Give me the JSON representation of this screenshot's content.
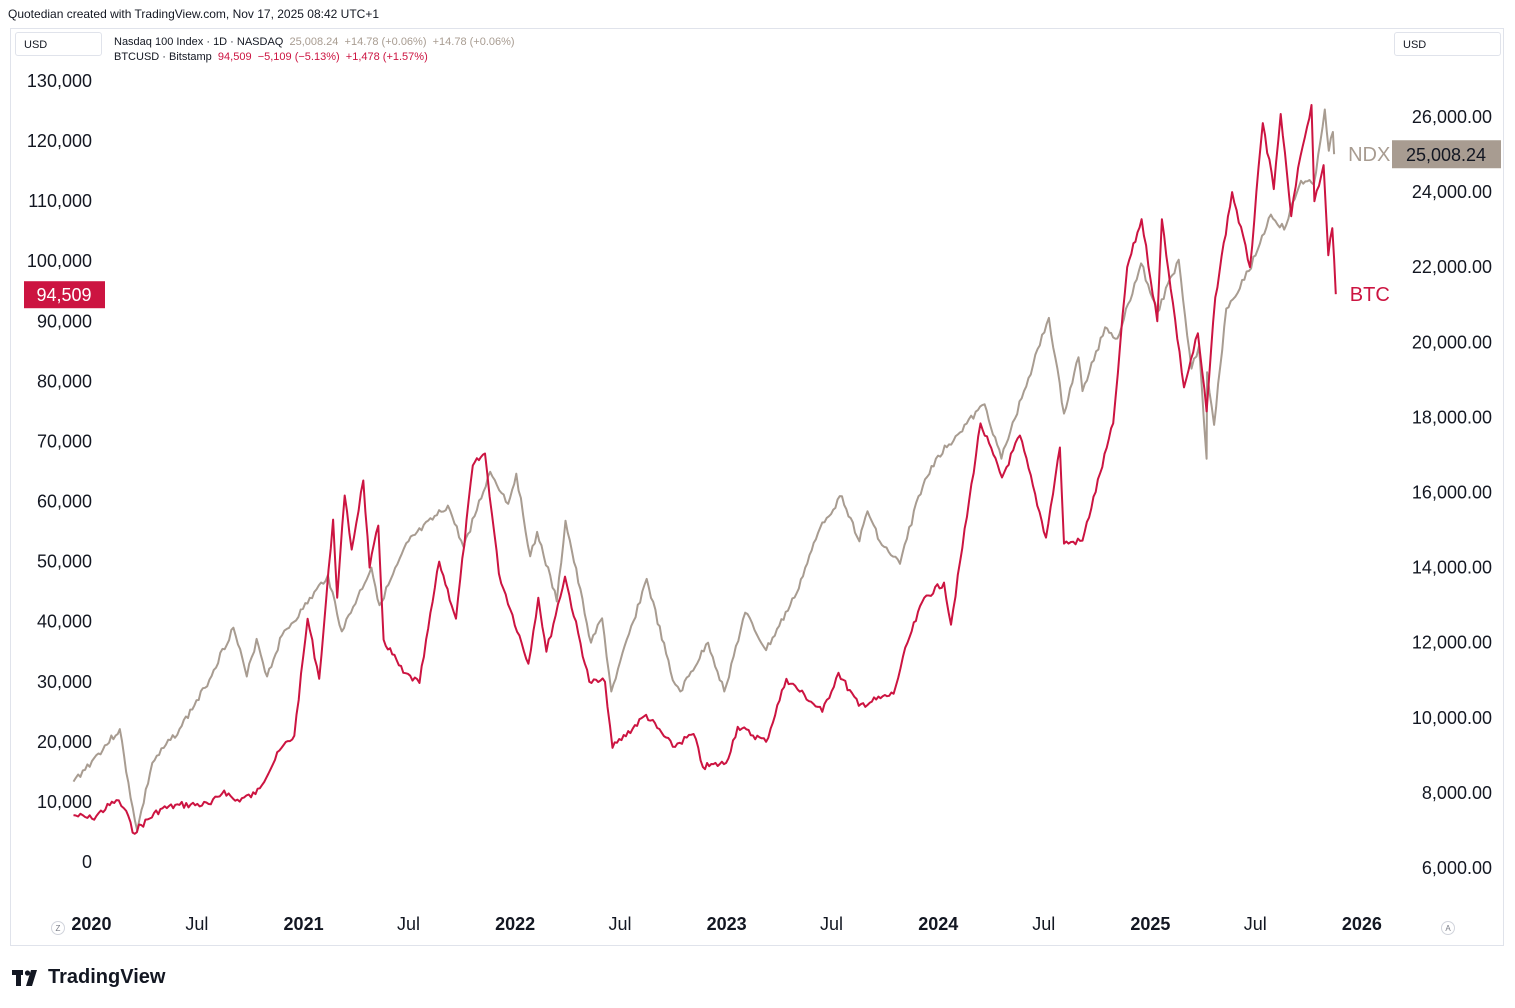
{
  "credit": "Quotedian created with TradingView.com, Nov 17, 2025 08:42 UTC+1",
  "units": {
    "left": "USD",
    "right": "USD"
  },
  "legend": {
    "ndx": {
      "name": "Nasdaq 100 Index · 1D · NASDAQ",
      "price": "25,008.24",
      "change": "+14.78 (+0.06%)",
      "change2": "+14.78 (+0.06%)"
    },
    "btc": {
      "name": "BTCUSD · Bitstamp",
      "price": "94,509",
      "change": "−5,109 (−5.13%)",
      "change2": "+1,478 (+1.57%)"
    }
  },
  "colors": {
    "ndx": "#a89c91",
    "btc": "#cc1441",
    "grid": "#f0f3fa",
    "text": "#131722"
  },
  "corner": {
    "left": "Z",
    "right": "A"
  },
  "brand": "TradingView",
  "chart_data": {
    "type": "line",
    "xlim": [
      "2019-11-25",
      "2026-01-15"
    ],
    "x_ticks": [
      {
        "date": "2020-01-01",
        "label": "2020",
        "bold": true
      },
      {
        "date": "2020-07-01",
        "label": "Jul",
        "bold": false
      },
      {
        "date": "2021-01-01",
        "label": "2021",
        "bold": true
      },
      {
        "date": "2021-07-01",
        "label": "Jul",
        "bold": false
      },
      {
        "date": "2022-01-01",
        "label": "2022",
        "bold": true
      },
      {
        "date": "2022-07-01",
        "label": "Jul",
        "bold": false
      },
      {
        "date": "2023-01-01",
        "label": "2023",
        "bold": true
      },
      {
        "date": "2023-07-01",
        "label": "Jul",
        "bold": false
      },
      {
        "date": "2024-01-01",
        "label": "2024",
        "bold": true
      },
      {
        "date": "2024-07-01",
        "label": "Jul",
        "bold": false
      },
      {
        "date": "2025-01-01",
        "label": "2025",
        "bold": true
      },
      {
        "date": "2025-07-01",
        "label": "Jul",
        "bold": false
      },
      {
        "date": "2026-01-01",
        "label": "2026",
        "bold": true
      }
    ],
    "left_axis": {
      "range": [
        0,
        130000
      ],
      "ticks": [
        {
          "value": 0,
          "label": "0"
        },
        {
          "value": 10000,
          "label": "10,000"
        },
        {
          "value": 20000,
          "label": "20,000"
        },
        {
          "value": 30000,
          "label": "30,000"
        },
        {
          "value": 40000,
          "label": "40,000"
        },
        {
          "value": 50000,
          "label": "50,000"
        },
        {
          "value": 60000,
          "label": "60,000"
        },
        {
          "value": 70000,
          "label": "70,000"
        },
        {
          "value": 80000,
          "label": "80,000"
        },
        {
          "value": 90000,
          "label": "90,000"
        },
        {
          "value": 100000,
          "label": "100,000"
        },
        {
          "value": 110000,
          "label": "110,000"
        },
        {
          "value": 120000,
          "label": "120,000"
        },
        {
          "value": 130000,
          "label": "130,000"
        }
      ]
    },
    "right_axis": {
      "range": [
        6000,
        26000
      ],
      "ticks": [
        {
          "value": 6000,
          "label": "6,000.00"
        },
        {
          "value": 8000,
          "label": "8,000.00"
        },
        {
          "value": 10000,
          "label": "10,000.00"
        },
        {
          "value": 12000,
          "label": "12,000.00"
        },
        {
          "value": 14000,
          "label": "14,000.00"
        },
        {
          "value": 16000,
          "label": "16,000.00"
        },
        {
          "value": 18000,
          "label": "18,000.00"
        },
        {
          "value": 20000,
          "label": "20,000.00"
        },
        {
          "value": 22000,
          "label": "22,000.00"
        },
        {
          "value": 24000,
          "label": "24,000.00"
        },
        {
          "value": 26000,
          "label": "26,000.00"
        }
      ]
    },
    "series": [
      {
        "name": "NDX",
        "axis": "right",
        "last_label": "25,008.24",
        "points": [
          [
            "2019-12-01",
            8300
          ],
          [
            "2020-01-02",
            8850
          ],
          [
            "2020-02-19",
            9700
          ],
          [
            "2020-03-01",
            8550
          ],
          [
            "2020-03-20",
            7000
          ],
          [
            "2020-04-15",
            8800
          ],
          [
            "2020-06-01",
            9700
          ],
          [
            "2020-07-15",
            10800
          ],
          [
            "2020-09-02",
            12400
          ],
          [
            "2020-09-25",
            11100
          ],
          [
            "2020-10-12",
            12100
          ],
          [
            "2020-10-30",
            11100
          ],
          [
            "2020-11-25",
            12200
          ],
          [
            "2020-12-31",
            12900
          ],
          [
            "2021-02-12",
            13800
          ],
          [
            "2021-03-08",
            12300
          ],
          [
            "2021-04-28",
            14000
          ],
          [
            "2021-05-12",
            13000
          ],
          [
            "2021-07-01",
            14700
          ],
          [
            "2021-09-07",
            15650
          ],
          [
            "2021-10-04",
            14550
          ],
          [
            "2021-11-19",
            16550
          ],
          [
            "2021-12-20",
            15700
          ],
          [
            "2022-01-03",
            16500
          ],
          [
            "2022-01-27",
            14300
          ],
          [
            "2022-02-08",
            14950
          ],
          [
            "2022-03-14",
            13100
          ],
          [
            "2022-03-29",
            15250
          ],
          [
            "2022-05-12",
            12000
          ],
          [
            "2022-05-31",
            12650
          ],
          [
            "2022-06-16",
            10700
          ],
          [
            "2022-08-16",
            13700
          ],
          [
            "2022-09-30",
            11000
          ],
          [
            "2022-10-13",
            10700
          ],
          [
            "2022-11-30",
            12000
          ],
          [
            "2022-12-28",
            10700
          ],
          [
            "2023-02-02",
            12800
          ],
          [
            "2023-03-10",
            11800
          ],
          [
            "2023-04-28",
            13200
          ],
          [
            "2023-06-15",
            15200
          ],
          [
            "2023-07-19",
            15900
          ],
          [
            "2023-08-18",
            14700
          ],
          [
            "2023-09-01",
            15500
          ],
          [
            "2023-09-26",
            14600
          ],
          [
            "2023-10-27",
            14100
          ],
          [
            "2023-11-28",
            15900
          ],
          [
            "2023-12-28",
            16900
          ],
          [
            "2024-01-31",
            17500
          ],
          [
            "2024-03-21",
            18350
          ],
          [
            "2024-04-19",
            16900
          ],
          [
            "2024-05-28",
            18700
          ],
          [
            "2024-07-10",
            20650
          ],
          [
            "2024-08-05",
            18100
          ],
          [
            "2024-08-30",
            19600
          ],
          [
            "2024-09-06",
            18700
          ],
          [
            "2024-10-15",
            20400
          ],
          [
            "2024-11-05",
            20100
          ],
          [
            "2024-12-16",
            22100
          ],
          [
            "2025-01-13",
            20800
          ],
          [
            "2025-02-19",
            22200
          ],
          [
            "2025-03-13",
            19300
          ],
          [
            "2025-03-26",
            19900
          ],
          [
            "2025-04-08",
            16900
          ],
          [
            "2025-04-09",
            19200
          ],
          [
            "2025-04-21",
            17800
          ],
          [
            "2025-05-12",
            20900
          ],
          [
            "2025-06-20",
            21900
          ],
          [
            "2025-07-28",
            23400
          ],
          [
            "2025-08-20",
            23000
          ],
          [
            "2025-09-18",
            24300
          ],
          [
            "2025-10-10",
            24200
          ],
          [
            "2025-10-29",
            26200
          ],
          [
            "2025-11-05",
            25100
          ],
          [
            "2025-11-12",
            25600
          ],
          [
            "2025-11-14",
            25008.24
          ]
        ]
      },
      {
        "name": "BTC",
        "axis": "left",
        "last_label": "94,509",
        "points": [
          [
            "2019-12-01",
            7800
          ],
          [
            "2020-01-02",
            7200
          ],
          [
            "2020-02-13",
            10300
          ],
          [
            "2020-03-01",
            8500
          ],
          [
            "2020-03-12",
            4900
          ],
          [
            "2020-04-29",
            8800
          ],
          [
            "2020-06-01",
            9500
          ],
          [
            "2020-07-25",
            9600
          ],
          [
            "2020-08-17",
            11900
          ],
          [
            "2020-09-05",
            10200
          ],
          [
            "2020-10-10",
            11300
          ],
          [
            "2020-11-24",
            19000
          ],
          [
            "2020-12-16",
            21000
          ],
          [
            "2021-01-08",
            40500
          ],
          [
            "2021-01-28",
            30500
          ],
          [
            "2021-02-21",
            57000
          ],
          [
            "2021-02-28",
            44000
          ],
          [
            "2021-03-13",
            61000
          ],
          [
            "2021-03-25",
            52000
          ],
          [
            "2021-04-14",
            63500
          ],
          [
            "2021-04-25",
            49000
          ],
          [
            "2021-05-10",
            56000
          ],
          [
            "2021-05-19",
            37000
          ],
          [
            "2021-06-22",
            31500
          ],
          [
            "2021-07-20",
            29800
          ],
          [
            "2021-08-23",
            50000
          ],
          [
            "2021-09-21",
            40500
          ],
          [
            "2021-10-20",
            66000
          ],
          [
            "2021-11-10",
            68000
          ],
          [
            "2021-12-04",
            48000
          ],
          [
            "2022-01-24",
            33000
          ],
          [
            "2022-02-10",
            44000
          ],
          [
            "2022-02-24",
            35000
          ],
          [
            "2022-03-28",
            47500
          ],
          [
            "2022-05-09",
            30000
          ],
          [
            "2022-06-05",
            30000
          ],
          [
            "2022-06-18",
            19000
          ],
          [
            "2022-08-15",
            24500
          ],
          [
            "2022-09-30",
            19200
          ],
          [
            "2022-11-05",
            21300
          ],
          [
            "2022-11-21",
            15800
          ],
          [
            "2022-12-31",
            16500
          ],
          [
            "2023-01-20",
            22500
          ],
          [
            "2023-03-10",
            20000
          ],
          [
            "2023-04-14",
            30500
          ],
          [
            "2023-06-15",
            25000
          ],
          [
            "2023-07-13",
            31500
          ],
          [
            "2023-08-17",
            26000
          ],
          [
            "2023-10-16",
            28000
          ],
          [
            "2023-11-09",
            36500
          ],
          [
            "2023-12-08",
            44000
          ],
          [
            "2024-01-11",
            46500
          ],
          [
            "2024-01-23",
            39500
          ],
          [
            "2024-03-14",
            73000
          ],
          [
            "2024-04-20",
            64000
          ],
          [
            "2024-05-21",
            71000
          ],
          [
            "2024-07-05",
            54000
          ],
          [
            "2024-07-29",
            69000
          ],
          [
            "2024-08-05",
            53000
          ],
          [
            "2024-09-06",
            53500
          ],
          [
            "2024-10-29",
            73000
          ],
          [
            "2024-11-22",
            99000
          ],
          [
            "2024-12-17",
            107000
          ],
          [
            "2025-01-13",
            90000
          ],
          [
            "2025-01-21",
            107000
          ],
          [
            "2025-02-28",
            79000
          ],
          [
            "2025-03-24",
            88000
          ],
          [
            "2025-04-08",
            75000
          ],
          [
            "2025-04-23",
            94000
          ],
          [
            "2025-05-22",
            111500
          ],
          [
            "2025-06-22",
            99000
          ],
          [
            "2025-07-14",
            123000
          ],
          [
            "2025-08-02",
            112000
          ],
          [
            "2025-08-14",
            124500
          ],
          [
            "2025-09-01",
            107500
          ],
          [
            "2025-09-17",
            117500
          ],
          [
            "2025-10-06",
            126000
          ],
          [
            "2025-10-11",
            110000
          ],
          [
            "2025-10-27",
            116000
          ],
          [
            "2025-11-04",
            101000
          ],
          [
            "2025-11-11",
            105500
          ],
          [
            "2025-11-17",
            94509
          ]
        ]
      }
    ]
  }
}
